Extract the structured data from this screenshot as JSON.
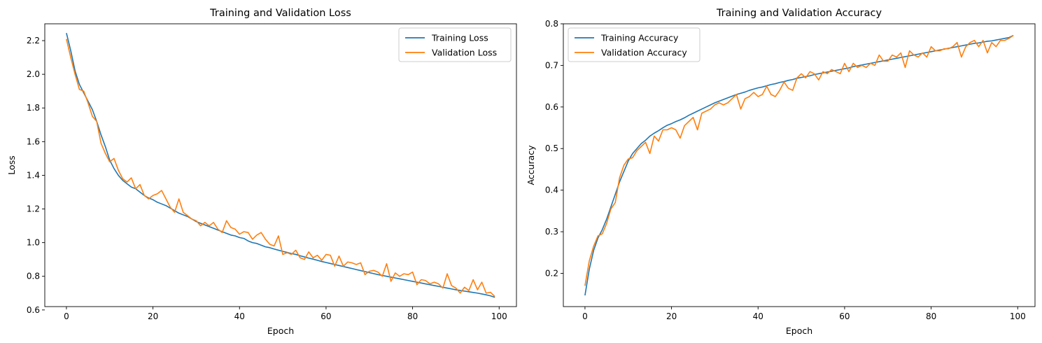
{
  "chart_data": [
    {
      "type": "line",
      "title": "Training and Validation Loss",
      "xlabel": "Epoch",
      "ylabel": "Loss",
      "xlim": [
        -5,
        104
      ],
      "ylim": [
        0.62,
        2.3
      ],
      "xticks": [
        0,
        20,
        40,
        60,
        80,
        100
      ],
      "xtick_labels": [
        "0",
        "20",
        "40",
        "60",
        "80",
        "100"
      ],
      "yticks": [
        0.6,
        0.8,
        1.0,
        1.2,
        1.4,
        1.6,
        1.8,
        2.0,
        2.2
      ],
      "ytick_labels": [
        "0.6",
        "0.8",
        "1.0",
        "1.2",
        "1.4",
        "1.6",
        "1.8",
        "2.0",
        "2.2"
      ],
      "grid": false,
      "legend_position": "top-right",
      "colors": [
        "#1f77b4",
        "#ff7f0e"
      ],
      "x": [
        0,
        1,
        2,
        3,
        4,
        5,
        6,
        7,
        8,
        9,
        10,
        11,
        12,
        13,
        14,
        15,
        16,
        17,
        18,
        19,
        20,
        21,
        22,
        23,
        24,
        25,
        26,
        27,
        28,
        29,
        30,
        31,
        32,
        33,
        34,
        35,
        36,
        37,
        38,
        39,
        40,
        41,
        42,
        43,
        44,
        45,
        46,
        47,
        48,
        49,
        50,
        51,
        52,
        53,
        54,
        55,
        56,
        57,
        58,
        59,
        60,
        61,
        62,
        63,
        64,
        65,
        66,
        67,
        68,
        69,
        70,
        71,
        72,
        73,
        74,
        75,
        76,
        77,
        78,
        79,
        80,
        81,
        82,
        83,
        84,
        85,
        86,
        87,
        88,
        89,
        90,
        91,
        92,
        93,
        94,
        95,
        96,
        97,
        98,
        99
      ],
      "series": [
        {
          "name": "Training Loss",
          "values": [
            2.245,
            2.14,
            2.02,
            1.94,
            1.89,
            1.84,
            1.79,
            1.72,
            1.64,
            1.57,
            1.49,
            1.44,
            1.4,
            1.37,
            1.35,
            1.33,
            1.32,
            1.3,
            1.28,
            1.265,
            1.255,
            1.24,
            1.23,
            1.22,
            1.205,
            1.19,
            1.175,
            1.165,
            1.155,
            1.14,
            1.125,
            1.115,
            1.105,
            1.095,
            1.085,
            1.075,
            1.065,
            1.055,
            1.045,
            1.04,
            1.03,
            1.025,
            1.01,
            1.0,
            0.995,
            0.985,
            0.975,
            0.97,
            0.962,
            0.955,
            0.948,
            0.942,
            0.935,
            0.93,
            0.922,
            0.915,
            0.908,
            0.902,
            0.895,
            0.888,
            0.882,
            0.876,
            0.87,
            0.864,
            0.858,
            0.852,
            0.846,
            0.84,
            0.834,
            0.828,
            0.822,
            0.816,
            0.81,
            0.805,
            0.8,
            0.795,
            0.79,
            0.785,
            0.78,
            0.775,
            0.77,
            0.765,
            0.76,
            0.755,
            0.75,
            0.745,
            0.74,
            0.735,
            0.73,
            0.725,
            0.72,
            0.716,
            0.712,
            0.708,
            0.704,
            0.7,
            0.695,
            0.69,
            0.684,
            0.675
          ]
        },
        {
          "name": "Validation Loss",
          "values": [
            2.21,
            2.1,
            2.0,
            1.91,
            1.9,
            1.83,
            1.75,
            1.72,
            1.59,
            1.53,
            1.48,
            1.5,
            1.43,
            1.38,
            1.36,
            1.385,
            1.32,
            1.345,
            1.28,
            1.26,
            1.28,
            1.29,
            1.31,
            1.26,
            1.21,
            1.18,
            1.26,
            1.18,
            1.16,
            1.14,
            1.13,
            1.1,
            1.12,
            1.1,
            1.12,
            1.08,
            1.06,
            1.13,
            1.09,
            1.08,
            1.05,
            1.065,
            1.06,
            1.02,
            1.045,
            1.06,
            1.02,
            0.99,
            0.98,
            1.04,
            0.93,
            0.94,
            0.93,
            0.955,
            0.91,
            0.9,
            0.945,
            0.91,
            0.925,
            0.895,
            0.93,
            0.925,
            0.86,
            0.92,
            0.86,
            0.885,
            0.88,
            0.87,
            0.88,
            0.81,
            0.83,
            0.835,
            0.825,
            0.8,
            0.875,
            0.77,
            0.82,
            0.8,
            0.815,
            0.81,
            0.825,
            0.75,
            0.78,
            0.775,
            0.755,
            0.765,
            0.755,
            0.73,
            0.815,
            0.745,
            0.73,
            0.7,
            0.735,
            0.715,
            0.78,
            0.72,
            0.765,
            0.7,
            0.705,
            0.68
          ]
        }
      ]
    },
    {
      "type": "line",
      "title": "Training and Validation Accuracy",
      "xlabel": "Epoch",
      "ylabel": "Accuracy",
      "xlim": [
        -5,
        104
      ],
      "ylim": [
        0.12,
        0.8
      ],
      "xticks": [
        0,
        20,
        40,
        60,
        80,
        100
      ],
      "xtick_labels": [
        "0",
        "20",
        "40",
        "60",
        "80",
        "100"
      ],
      "yticks": [
        0.2,
        0.3,
        0.4,
        0.5,
        0.6,
        0.7,
        0.8
      ],
      "ytick_labels": [
        "0.2",
        "0.3",
        "0.4",
        "0.5",
        "0.6",
        "0.7",
        "0.8"
      ],
      "grid": false,
      "legend_position": "top-left",
      "colors": [
        "#1f77b4",
        "#ff7f0e"
      ],
      "x": [
        0,
        1,
        2,
        3,
        4,
        5,
        6,
        7,
        8,
        9,
        10,
        11,
        12,
        13,
        14,
        15,
        16,
        17,
        18,
        19,
        20,
        21,
        22,
        23,
        24,
        25,
        26,
        27,
        28,
        29,
        30,
        31,
        32,
        33,
        34,
        35,
        36,
        37,
        38,
        39,
        40,
        41,
        42,
        43,
        44,
        45,
        46,
        47,
        48,
        49,
        50,
        51,
        52,
        53,
        54,
        55,
        56,
        57,
        58,
        59,
        60,
        61,
        62,
        63,
        64,
        65,
        66,
        67,
        68,
        69,
        70,
        71,
        72,
        73,
        74,
        75,
        76,
        77,
        78,
        79,
        80,
        81,
        82,
        83,
        84,
        85,
        86,
        87,
        88,
        89,
        90,
        91,
        92,
        93,
        94,
        95,
        96,
        97,
        98,
        99
      ],
      "series": [
        {
          "name": "Training Accuracy",
          "values": [
            0.147,
            0.21,
            0.255,
            0.285,
            0.305,
            0.33,
            0.36,
            0.39,
            0.42,
            0.445,
            0.47,
            0.488,
            0.5,
            0.512,
            0.52,
            0.53,
            0.537,
            0.543,
            0.55,
            0.556,
            0.56,
            0.565,
            0.569,
            0.574,
            0.58,
            0.585,
            0.59,
            0.595,
            0.6,
            0.605,
            0.61,
            0.614,
            0.618,
            0.622,
            0.626,
            0.63,
            0.633,
            0.636,
            0.64,
            0.643,
            0.646,
            0.648,
            0.651,
            0.654,
            0.656,
            0.659,
            0.661,
            0.664,
            0.666,
            0.669,
            0.671,
            0.673,
            0.675,
            0.678,
            0.68,
            0.682,
            0.684,
            0.686,
            0.688,
            0.69,
            0.692,
            0.694,
            0.697,
            0.699,
            0.701,
            0.703,
            0.705,
            0.707,
            0.709,
            0.711,
            0.713,
            0.715,
            0.717,
            0.719,
            0.721,
            0.723,
            0.725,
            0.727,
            0.729,
            0.731,
            0.733,
            0.735,
            0.737,
            0.739,
            0.741,
            0.743,
            0.745,
            0.747,
            0.749,
            0.751,
            0.753,
            0.754,
            0.756,
            0.758,
            0.759,
            0.761,
            0.763,
            0.765,
            0.767,
            0.772
          ]
        },
        {
          "name": "Validation Accuracy",
          "values": [
            0.17,
            0.23,
            0.265,
            0.29,
            0.295,
            0.32,
            0.355,
            0.37,
            0.43,
            0.46,
            0.475,
            0.478,
            0.495,
            0.505,
            0.515,
            0.488,
            0.53,
            0.518,
            0.545,
            0.545,
            0.55,
            0.545,
            0.525,
            0.555,
            0.565,
            0.575,
            0.545,
            0.585,
            0.59,
            0.595,
            0.605,
            0.61,
            0.605,
            0.61,
            0.62,
            0.63,
            0.595,
            0.62,
            0.625,
            0.635,
            0.625,
            0.63,
            0.65,
            0.63,
            0.625,
            0.64,
            0.66,
            0.645,
            0.64,
            0.67,
            0.68,
            0.67,
            0.685,
            0.68,
            0.665,
            0.685,
            0.68,
            0.69,
            0.685,
            0.68,
            0.705,
            0.685,
            0.705,
            0.695,
            0.7,
            0.695,
            0.705,
            0.7,
            0.725,
            0.71,
            0.71,
            0.725,
            0.72,
            0.73,
            0.695,
            0.735,
            0.725,
            0.72,
            0.73,
            0.72,
            0.745,
            0.735,
            0.735,
            0.74,
            0.74,
            0.745,
            0.755,
            0.72,
            0.745,
            0.755,
            0.76,
            0.745,
            0.76,
            0.73,
            0.755,
            0.745,
            0.76,
            0.76,
            0.765,
            0.772
          ]
        }
      ]
    }
  ]
}
